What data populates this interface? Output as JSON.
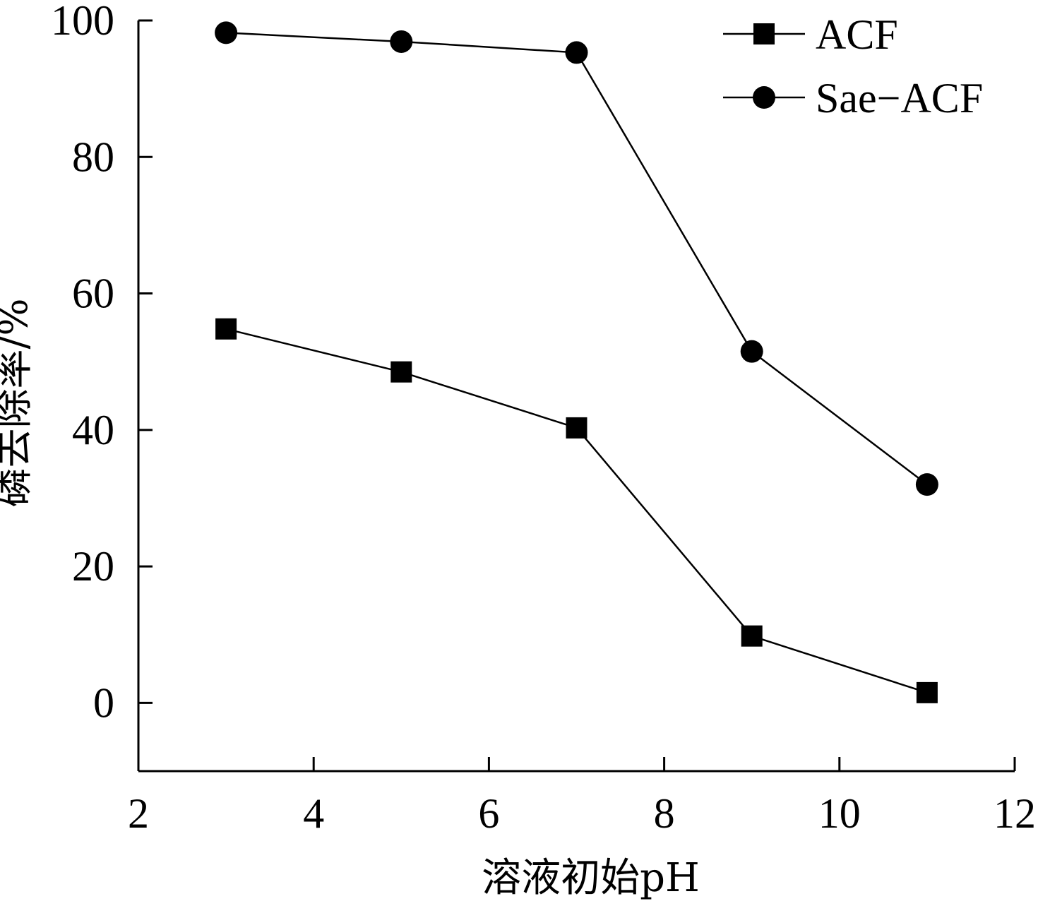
{
  "chart_data": {
    "type": "line",
    "xlabel": "溶液初始pH",
    "ylabel": "磷去除率/%",
    "xlim": [
      2,
      12
    ],
    "ylim": [
      -10,
      100
    ],
    "xticks": [
      2,
      4,
      6,
      8,
      10,
      12
    ],
    "yticks": [
      0,
      20,
      40,
      60,
      80,
      100
    ],
    "grid": false,
    "legend_position": "top-right",
    "x": [
      3,
      5,
      7,
      9,
      11
    ],
    "series": [
      {
        "name": "ACF",
        "marker": "square",
        "color": "#000000",
        "values": [
          54.8,
          48.5,
          40.3,
          9.8,
          1.5
        ]
      },
      {
        "name": "Sae−ACF",
        "marker": "circle",
        "color": "#000000",
        "values": [
          98.2,
          96.9,
          95.3,
          51.5,
          32.0
        ]
      }
    ]
  }
}
